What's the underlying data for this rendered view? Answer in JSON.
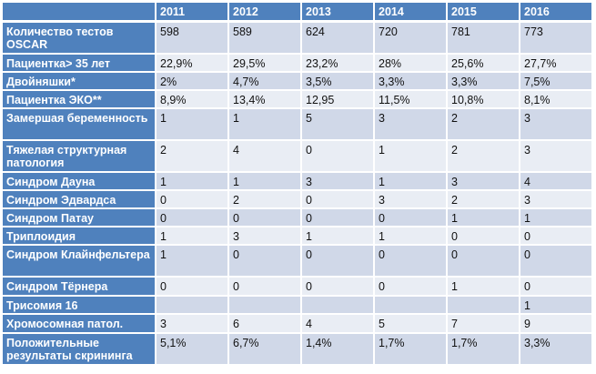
{
  "table": {
    "headers": [
      "",
      "2011",
      "2012",
      "2013",
      "2014",
      "2015",
      "2016"
    ],
    "rows": [
      {
        "label": "Количество тестов OSCAR",
        "values": [
          "598",
          "589",
          "624",
          "720",
          "781",
          "773"
        ]
      },
      {
        "label": "Пациентка> 35 лет",
        "values": [
          "22,9%",
          "29,5%",
          "23,2%",
          "28%",
          "25,6%",
          "27,7%"
        ]
      },
      {
        "label": "Двойняшки*",
        "values": [
          "2%",
          "4,7%",
          "3,5%",
          "3,3%",
          "3,3%",
          "7,5%"
        ]
      },
      {
        "label": "Пациентка ЭКО**",
        "values": [
          "8,9%",
          "13,4%",
          "12,95",
          "11,5%",
          "10,8%",
          "8,1%"
        ]
      },
      {
        "label": "Замершая беременность",
        "values": [
          "1",
          "1",
          "5",
          "3",
          "2",
          "3"
        ]
      },
      {
        "label": "Тяжелая структурная патология",
        "values": [
          "2",
          "4",
          "0",
          "1",
          "2",
          "3"
        ]
      },
      {
        "label": "Синдром Дауна",
        "values": [
          "1",
          "1",
          "3",
          "1",
          "3",
          "4"
        ]
      },
      {
        "label": "Синдром Эдвардса",
        "values": [
          "0",
          "2",
          "0",
          "3",
          "2",
          "3"
        ]
      },
      {
        "label": "Синдром Патау",
        "values": [
          "0",
          "0",
          "0",
          "0",
          "1",
          "1"
        ]
      },
      {
        "label": "Триплоидия",
        "values": [
          "1",
          "3",
          "1",
          "1",
          "0",
          "0"
        ]
      },
      {
        "label": "Синдром Клайнфельтера",
        "values": [
          "1",
          "0",
          "0",
          "0",
          "0",
          "0"
        ]
      },
      {
        "label": "Синдром Тёрнера",
        "values": [
          "0",
          "0",
          "0",
          "0",
          "1",
          "0"
        ]
      },
      {
        "label": "Трисомия 16",
        "values": [
          "",
          "",
          "",
          "",
          "",
          "1"
        ]
      },
      {
        "label": "Хромосомная патол.",
        "values": [
          "3",
          "6",
          "4",
          "5",
          "7",
          "9"
        ]
      },
      {
        "label": "Положительные результаты скрининга",
        "values": [
          "5,1%",
          "6,7%",
          "1,4%",
          "1,7%",
          "1,7%",
          "3,3%"
        ]
      }
    ]
  },
  "colors": {
    "header_blue": "#4f81bd",
    "row_dark": "#d0d8e8",
    "row_light": "#e9edf4"
  }
}
